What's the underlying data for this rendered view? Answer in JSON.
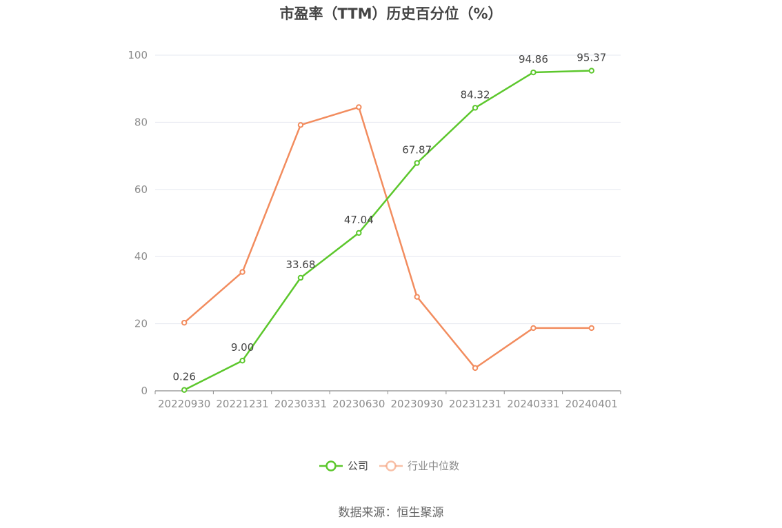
{
  "chart_data": {
    "type": "line",
    "title": "市盈率（TTM）历史百分位（%）",
    "categories": [
      "20220930",
      "20221231",
      "20230331",
      "20230630",
      "20230930",
      "20231231",
      "20240331",
      "20240401"
    ],
    "ylim": [
      0,
      100
    ],
    "yticks": [
      0,
      20,
      40,
      60,
      80,
      100
    ],
    "grid": true,
    "legend_position": "bottom",
    "series": [
      {
        "name": "公司",
        "color": "#5cc72c",
        "values": [
          0.26,
          9.0,
          33.68,
          47.04,
          67.87,
          84.32,
          94.86,
          95.37
        ],
        "labels": [
          "0.26",
          "9.00",
          "33.68",
          "47.04",
          "67.87",
          "84.32",
          "94.86",
          "95.37"
        ]
      },
      {
        "name": "行业中位数",
        "color": "#f28c5e",
        "values": [
          20.3,
          35.4,
          79.2,
          84.5,
          28.0,
          6.8,
          18.7,
          18.7
        ]
      }
    ]
  },
  "source": "数据来源：恒生聚源"
}
